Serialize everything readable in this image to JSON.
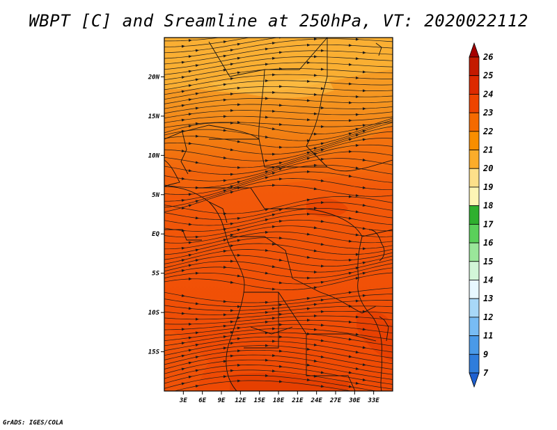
{
  "title": "WBPT [C] and Sreamline at 250hPa, VT: 2020022112",
  "credit": "GrADS: IGES/COLA",
  "map": {
    "lon_range": [
      0,
      36
    ],
    "lat_range": [
      -20,
      25
    ],
    "lon_ticks": [
      "3E",
      "6E",
      "9E",
      "12E",
      "15E",
      "18E",
      "21E",
      "24E",
      "27E",
      "30E",
      "33E"
    ],
    "lat_ticks": [
      "20N",
      "15N",
      "10N",
      "5N",
      "EQ",
      "5S",
      "10S",
      "15S"
    ]
  },
  "colorbar": {
    "labels": [
      "26",
      "25",
      "24",
      "23",
      "22",
      "21",
      "20",
      "19",
      "18",
      "17",
      "16",
      "15",
      "14",
      "13",
      "12",
      "11",
      "9",
      "7"
    ],
    "colors": [
      "#a50000",
      "#c41a00",
      "#dd2a00",
      "#ee4400",
      "#f56a00",
      "#f98e00",
      "#fbac2a",
      "#fde08a",
      "#fdf5b5",
      "#2fb02f",
      "#5ad05a",
      "#9ae69a",
      "#d2f6d8",
      "#e8f8ff",
      "#a8d8f8",
      "#78bcf4",
      "#4a9ae8",
      "#2f7ddc",
      "#1e60d0"
    ]
  },
  "colors": {
    "warm_north": "#f8a62a",
    "core": "#f25a0a",
    "hot": "#e03800"
  }
}
